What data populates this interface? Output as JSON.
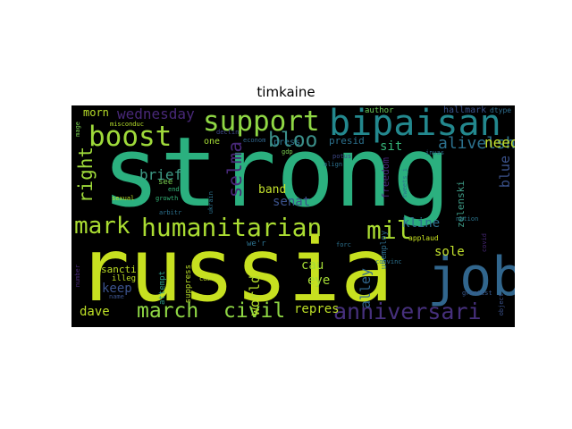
{
  "title": "timkaine",
  "words": [
    "strong",
    "russia",
    "bipaisan",
    "job",
    "support",
    "boost",
    "bloo",
    "mark",
    "humanitarian",
    "mil",
    "march",
    "civil",
    "anniversari",
    "right",
    "selma",
    "wednesday",
    "morn",
    "brief",
    "band",
    "alley",
    "blue",
    "senat",
    "kline",
    "sit",
    "alivelshi",
    "need",
    "sole",
    "cau",
    "eye",
    "repres",
    "keep",
    "dave",
    "world",
    "sancti",
    "attempt",
    "suppress",
    "illeg",
    "come",
    "press",
    "presid",
    "freedom",
    "unemploy",
    "zelenski",
    "tweets_i",
    "hallmark",
    "dtype",
    "author",
    "nation",
    "covid",
    "applaud",
    "convinc",
    "greatest",
    "object",
    "declin",
    "econom",
    "gdp",
    "potus",
    "align",
    "invas",
    "forc",
    "we'r",
    "one",
    "see",
    "end",
    "growth",
    "arbitr",
    "sexual",
    "ukrain",
    "misconduc",
    "mage",
    "number",
    "name"
  ],
  "palette": {
    "teal": "#2bb07f",
    "lime": "#b8de29",
    "blue": "#31668d",
    "green": "#6ccd5a",
    "purple": "#46307c",
    "navy": "#3b528b",
    "cyan": "#23888e"
  }
}
